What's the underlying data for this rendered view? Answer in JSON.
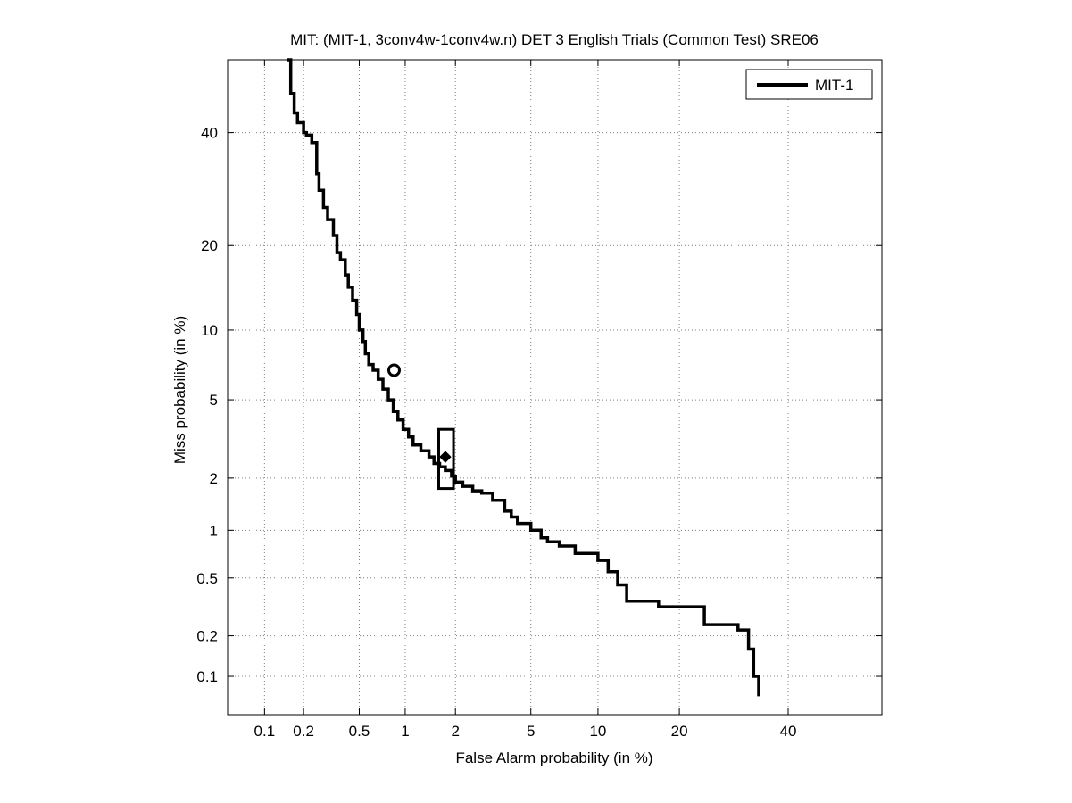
{
  "chart_data": {
    "type": "line",
    "title": "MIT: (MIT-1, 3conv4w-1conv4w.n) DET 3 English Trials (Common Test) SRE06",
    "xlabel": "False Alarm probability (in %)",
    "ylabel": "Miss probability (in %)",
    "x_scale": "probit",
    "y_scale": "probit",
    "xlim": [
      0.05,
      60
    ],
    "ylim": [
      0.05,
      55
    ],
    "x_ticks": [
      0.1,
      0.2,
      0.5,
      1,
      2,
      5,
      10,
      20,
      40
    ],
    "x_tick_labels": [
      "0.1",
      "0.2",
      "0.5",
      "1",
      "2",
      "5",
      "10",
      "20",
      "40"
    ],
    "y_ticks": [
      0.1,
      0.2,
      0.5,
      1,
      2,
      5,
      10,
      20,
      40
    ],
    "y_tick_labels": [
      "0.1",
      "0.2",
      "0.5",
      "1",
      "2",
      "5",
      "10",
      "20",
      "40"
    ],
    "grid": true,
    "legend_position": "top-right",
    "colors": {
      "line": "#000000",
      "grid": "#7f7f7f"
    },
    "series": [
      {
        "name": "MIT-1",
        "x": [
          0.15,
          0.16,
          0.17,
          0.18,
          0.2,
          0.21,
          0.23,
          0.25,
          0.26,
          0.28,
          0.3,
          0.33,
          0.35,
          0.37,
          0.4,
          0.42,
          0.45,
          0.48,
          0.5,
          0.53,
          0.55,
          0.58,
          0.62,
          0.67,
          0.72,
          0.78,
          0.84,
          0.9,
          0.97,
          1.05,
          1.12,
          1.25,
          1.4,
          1.5,
          1.62,
          1.75,
          1.9,
          2.0,
          2.2,
          2.5,
          2.8,
          3.2,
          3.7,
          4.0,
          4.3,
          5.0,
          5.6,
          6.0,
          6.8,
          8.0,
          10.0,
          11.0,
          12.0,
          13.0,
          17.0,
          24.0,
          30.0,
          32.0,
          33.0,
          34.0
        ],
        "y": [
          55,
          48,
          44,
          42,
          40,
          39.5,
          38,
          32,
          29,
          26,
          24,
          21.5,
          19,
          18,
          16,
          14.5,
          13,
          11.5,
          10,
          9,
          8,
          7.2,
          6.8,
          6.2,
          5.6,
          5.0,
          4.4,
          4.0,
          3.6,
          3.3,
          3.0,
          2.8,
          2.6,
          2.4,
          2.3,
          2.2,
          2.05,
          1.9,
          1.8,
          1.7,
          1.65,
          1.5,
          1.3,
          1.2,
          1.1,
          1.0,
          0.9,
          0.85,
          0.8,
          0.72,
          0.65,
          0.55,
          0.45,
          0.35,
          0.32,
          0.24,
          0.22,
          0.16,
          0.1,
          0.07
        ],
        "markers": [
          {
            "shape": "circle",
            "x": 0.85,
            "y": 6.8
          },
          {
            "shape": "box",
            "x": 1.75,
            "y": 2.6,
            "x_range": [
              1.6,
              1.95
            ],
            "y_range": [
              1.75,
              3.6
            ]
          },
          {
            "shape": "diamond",
            "x": 1.75,
            "y": 2.6
          }
        ]
      }
    ]
  }
}
